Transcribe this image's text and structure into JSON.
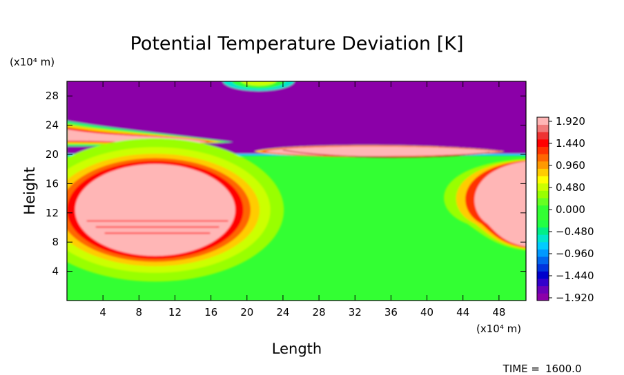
{
  "chart_data": {
    "type": "heatmap",
    "title": "Potential Temperature Deviation [K]",
    "xlabel": "Length",
    "ylabel": "Height",
    "x_unit": "(x10⁴ m)",
    "y_unit": "(x10⁴ m)",
    "xlim": [
      0,
      51
    ],
    "ylim": [
      0,
      30
    ],
    "x_ticks": [
      4,
      8,
      12,
      16,
      20,
      24,
      28,
      32,
      36,
      40,
      44,
      48
    ],
    "y_ticks": [
      4,
      8,
      12,
      16,
      20,
      24,
      28
    ],
    "colorbar": {
      "labels": [
        "1.920",
        "1.440",
        "0.960",
        "0.480",
        "0.000",
        "-0.480",
        "-0.960",
        "-1.440",
        "-1.920"
      ],
      "min": -2.0,
      "max": 2.0,
      "levels": 25
    },
    "features": [
      {
        "name": "warm bubble left",
        "value": 1.92,
        "x_range": [
          1.5,
          24
        ],
        "y_range": [
          7,
          17.5
        ]
      },
      {
        "name": "warm bubble right edge",
        "value": 1.92,
        "x_range": [
          44,
          51
        ],
        "y_range": [
          8,
          19
        ]
      },
      {
        "name": "warm layer at tropopause",
        "value": 1.92,
        "x_range": [
          24,
          47
        ],
        "y_range": [
          19.6,
          21.2
        ]
      },
      {
        "name": "cold upper layer",
        "value": -1.92,
        "x_range": [
          0,
          51
        ],
        "y_range": [
          20,
          30
        ]
      },
      {
        "name": "warm tongue",
        "value": 1.92,
        "x_range": [
          0,
          18.5
        ],
        "y_range": [
          21.3,
          24.5
        ]
      },
      {
        "name": "warm patch top",
        "value": 0.5,
        "x_range": [
          17,
          25
        ],
        "y_range": [
          28.5,
          30
        ]
      }
    ],
    "grid": false
  },
  "time": {
    "label": "TIME =",
    "value": "1600.0"
  }
}
